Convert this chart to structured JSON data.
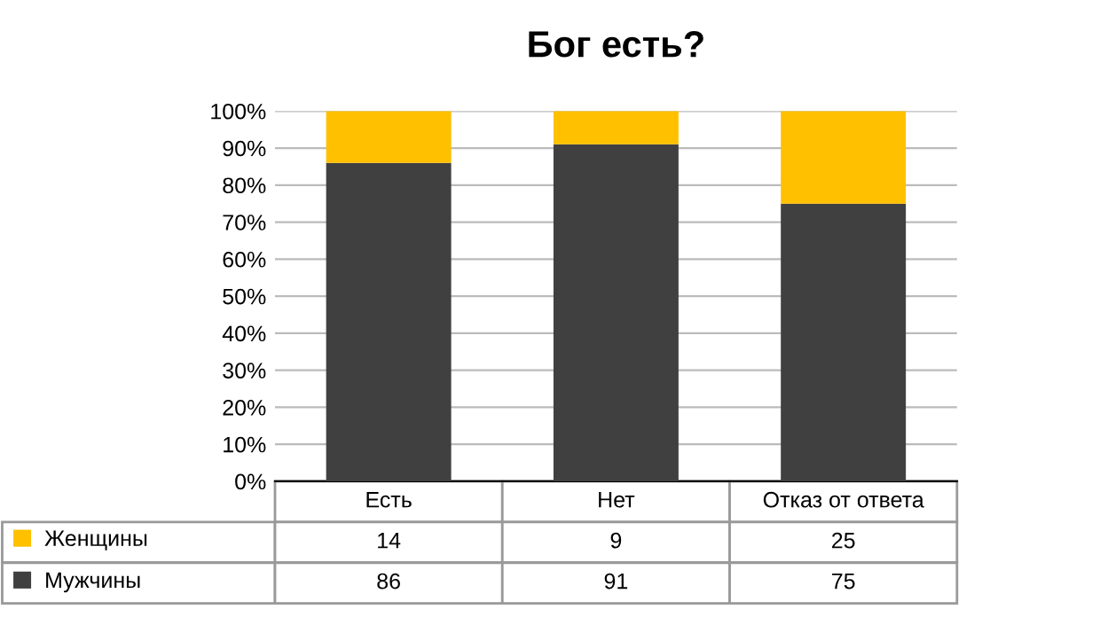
{
  "chart_data": {
    "type": "bar",
    "title": "Бог есть?",
    "stacked": true,
    "categories": [
      "Есть",
      "Нет",
      "Отказ от ответа"
    ],
    "series": [
      {
        "name": "Мужчины",
        "color": "#404040",
        "values": [
          86,
          91,
          75
        ]
      },
      {
        "name": "Женщины",
        "color": "#ffc000",
        "values": [
          14,
          9,
          25
        ]
      }
    ],
    "ylim": [
      0,
      100
    ],
    "yticks": [
      {
        "value": 0,
        "label": "0%"
      },
      {
        "value": 10,
        "label": "10%"
      },
      {
        "value": 20,
        "label": "20%"
      },
      {
        "value": 30,
        "label": "30%"
      },
      {
        "value": 40,
        "label": "40%"
      },
      {
        "value": 50,
        "label": "50%"
      },
      {
        "value": 60,
        "label": "60%"
      },
      {
        "value": 70,
        "label": "70%"
      },
      {
        "value": 80,
        "label": "80%"
      },
      {
        "value": 90,
        "label": "90%"
      },
      {
        "value": 100,
        "label": "100%"
      }
    ],
    "grid": "y",
    "data_labels": true,
    "legend": "bottom left",
    "tick_labels": "y"
  }
}
